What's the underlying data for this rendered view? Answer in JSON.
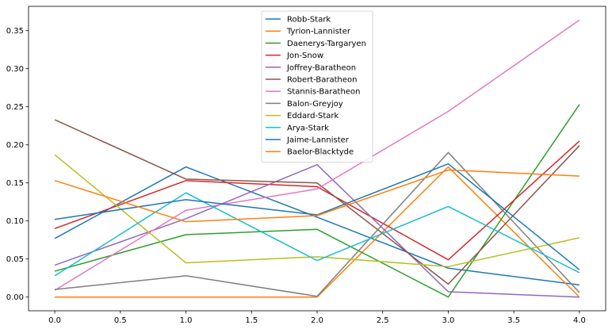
{
  "chart_data": {
    "type": "line",
    "title": "",
    "xlabel": "",
    "ylabel": "",
    "x": [
      0,
      1,
      2,
      3,
      4
    ],
    "xlim": [
      -0.2,
      4.2
    ],
    "ylim": [
      -0.018,
      0.382
    ],
    "xticks": [
      0.0,
      0.5,
      1.0,
      1.5,
      2.0,
      2.5,
      3.0,
      3.5,
      4.0
    ],
    "xtick_labels": [
      "0.0",
      "0.5",
      "1.0",
      "1.5",
      "2.0",
      "2.5",
      "3.0",
      "3.5",
      "4.0"
    ],
    "yticks": [
      0.0,
      0.05,
      0.1,
      0.15,
      0.2,
      0.25,
      0.3,
      0.35
    ],
    "ytick_labels": [
      "0.00",
      "0.05",
      "0.10",
      "0.15",
      "0.20",
      "0.25",
      "0.30",
      "0.35"
    ],
    "grid": false,
    "legend_position": "top-center",
    "series": [
      {
        "name": "Robb-Stark",
        "color": "#1f77b4",
        "values": [
          0.077,
          0.171,
          0.105,
          0.038,
          0.016
        ]
      },
      {
        "name": "Tyrion-Lannister",
        "color": "#ff7f0e",
        "values": [
          0.0,
          0.0,
          0.0,
          0.171,
          0.0
        ]
      },
      {
        "name": "Daenerys-Targaryen",
        "color": "#2ca02c",
        "values": [
          0.034,
          0.082,
          0.089,
          0.0,
          0.253
        ]
      },
      {
        "name": "Jon-Snow",
        "color": "#d62728",
        "values": [
          0.09,
          0.153,
          0.145,
          0.049,
          0.205
        ]
      },
      {
        "name": "Joffrey-Baratheon",
        "color": "#9467bd",
        "values": [
          0.042,
          0.103,
          0.174,
          0.007,
          0.0
        ]
      },
      {
        "name": "Robert-Baratheon",
        "color": "#8c564b",
        "values": [
          0.233,
          0.155,
          0.15,
          0.017,
          0.199
        ]
      },
      {
        "name": "Stannis-Baratheon",
        "color": "#e377c2",
        "values": [
          0.009,
          0.114,
          0.142,
          0.244,
          0.364
        ]
      },
      {
        "name": "Balon-Greyjoy",
        "color": "#7f7f7f",
        "values": [
          0.01,
          0.028,
          0.001,
          0.19,
          0.006
        ]
      },
      {
        "name": "Eddard-Stark",
        "color": "#bcbd22",
        "values": [
          0.187,
          0.045,
          0.053,
          0.04,
          0.078
        ]
      },
      {
        "name": "Arya-Stark",
        "color": "#17becf",
        "values": [
          0.028,
          0.137,
          0.048,
          0.119,
          0.032
        ]
      },
      {
        "name": "Jaime-Lannister",
        "color": "#1f77b4",
        "values": [
          0.102,
          0.128,
          0.108,
          0.175,
          0.036
        ]
      },
      {
        "name": "Baelor-Blacktyde",
        "color": "#ff7f0e",
        "values": [
          0.153,
          0.099,
          0.107,
          0.167,
          0.159
        ]
      }
    ]
  }
}
